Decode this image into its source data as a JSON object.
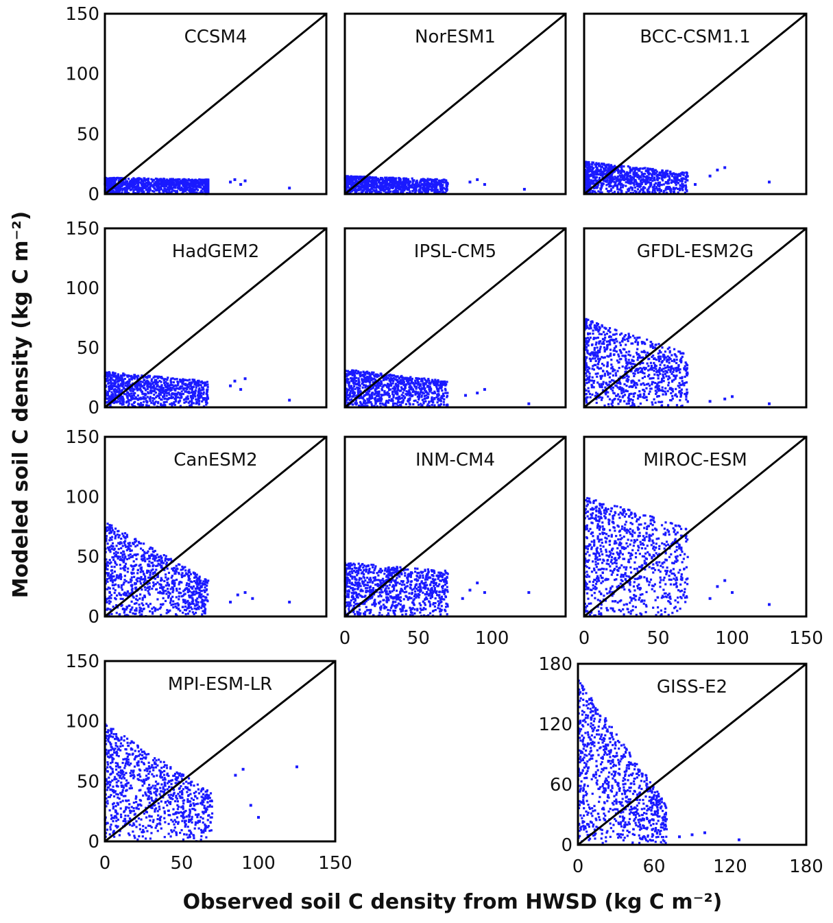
{
  "figure": {
    "ylabel": "Modeled soil  C density  (kg C m⁻²)",
    "xlabel": "Observed soil C density from HWSD (kg C m⁻²)"
  },
  "colors": {
    "points": "#1a1aff",
    "line": "#000000",
    "frame": "#000000"
  },
  "chart_data": [
    {
      "type": "scatter",
      "title": "CCSM4",
      "xlim": [
        0,
        150
      ],
      "ylim": [
        0,
        150
      ],
      "yticks": [
        "0",
        "50",
        "100",
        "150"
      ],
      "xticks": [],
      "reference_line": "1:1",
      "clusters": [
        {
          "x": [
            0,
            70
          ],
          "ymax": [
            14,
            12
          ]
        },
        {
          "x": [
            70,
            68
          ],
          "ymax": [
            12,
            12
          ]
        }
      ],
      "x": [
        85,
        88,
        92,
        95,
        125
      ],
      "y": [
        10,
        12,
        8,
        11,
        5
      ]
    },
    {
      "type": "scatter",
      "title": "NorESM1",
      "xlim": [
        0,
        150
      ],
      "ylim": [
        0,
        150
      ],
      "yticks": [],
      "xticks": [],
      "reference_line": "1:1",
      "clusters": [
        {
          "x": [
            0,
            70
          ],
          "ymax": [
            15,
            12
          ]
        }
      ],
      "x": [
        85,
        90,
        95,
        122
      ],
      "y": [
        10,
        12,
        8,
        4
      ]
    },
    {
      "type": "scatter",
      "title": "BCC-CSM1.1",
      "xlim": [
        0,
        150
      ],
      "ylim": [
        0,
        150
      ],
      "yticks": [],
      "xticks": [],
      "reference_line": "1:1",
      "clusters": [
        {
          "x": [
            0,
            70
          ],
          "ymax": [
            27,
            18
          ]
        }
      ],
      "x": [
        75,
        85,
        90,
        95,
        125
      ],
      "y": [
        8,
        15,
        20,
        22,
        10
      ]
    },
    {
      "type": "scatter",
      "title": "HadGEM2",
      "xlim": [
        0,
        150
      ],
      "ylim": [
        0,
        150
      ],
      "yticks": [
        "0",
        "50",
        "100",
        "150"
      ],
      "xticks": [],
      "reference_line": "1:1",
      "clusters": [
        {
          "x": [
            0,
            70
          ],
          "ymax": [
            30,
            22
          ]
        }
      ],
      "x": [
        85,
        88,
        92,
        95,
        125
      ],
      "y": [
        18,
        22,
        15,
        24,
        6
      ]
    },
    {
      "type": "scatter",
      "title": "IPSL-CM5",
      "xlim": [
        0,
        150
      ],
      "ylim": [
        0,
        150
      ],
      "yticks": [],
      "xticks": [],
      "reference_line": "1:1",
      "clusters": [
        {
          "x": [
            0,
            70
          ],
          "ymax": [
            32,
            22
          ]
        }
      ],
      "x": [
        82,
        90,
        95,
        125
      ],
      "y": [
        10,
        12,
        15,
        3
      ]
    },
    {
      "type": "scatter",
      "title": "GFDL-ESM2G",
      "xlim": [
        0,
        150
      ],
      "ylim": [
        0,
        150
      ],
      "yticks": [],
      "xticks": [],
      "reference_line": "1:1",
      "clusters": [
        {
          "x": [
            0,
            70
          ],
          "ymax": [
            75,
            45
          ]
        }
      ],
      "x": [
        85,
        95,
        100,
        125
      ],
      "y": [
        5,
        7,
        9,
        3
      ]
    },
    {
      "type": "scatter",
      "title": "CanESM2",
      "xlim": [
        0,
        150
      ],
      "ylim": [
        0,
        150
      ],
      "yticks": [
        "0",
        "50",
        "100",
        "150"
      ],
      "xticks": [],
      "reference_line": "1:1",
      "clusters": [
        {
          "x": [
            0,
            70
          ],
          "ymax": [
            80,
            30
          ]
        }
      ],
      "x": [
        85,
        90,
        95,
        100,
        125
      ],
      "y": [
        12,
        18,
        20,
        15,
        12
      ]
    },
    {
      "type": "scatter",
      "title": "INM-CM4",
      "xlim": [
        0,
        150
      ],
      "ylim": [
        0,
        150
      ],
      "yticks": [],
      "xticks": [
        "0",
        "50",
        "100"
      ],
      "reference_line": "1:1",
      "clusters": [
        {
          "x": [
            0,
            70
          ],
          "ymax": [
            45,
            38
          ]
        }
      ],
      "x": [
        80,
        85,
        90,
        95,
        125
      ],
      "y": [
        15,
        22,
        28,
        20,
        20
      ]
    },
    {
      "type": "scatter",
      "title": "MIROC-ESM",
      "xlim": [
        0,
        150
      ],
      "ylim": [
        0,
        150
      ],
      "yticks": [],
      "xticks": [
        "0",
        "50",
        "100",
        "150"
      ],
      "reference_line": "1:1",
      "clusters": [
        {
          "x": [
            0,
            70
          ],
          "ymax": [
            100,
            75
          ]
        }
      ],
      "x": [
        85,
        90,
        95,
        100,
        125
      ],
      "y": [
        15,
        25,
        30,
        20,
        10
      ]
    },
    {
      "type": "scatter",
      "title": "MPI-ESM-LR",
      "xlim": [
        0,
        150
      ],
      "ylim": [
        0,
        150
      ],
      "yticks": [
        "0",
        "50",
        "100",
        "150"
      ],
      "xticks": [
        "0",
        "50",
        "100",
        "150"
      ],
      "reference_line": "1:1",
      "clusters": [
        {
          "x": [
            0,
            70
          ],
          "ymax": [
            98,
            40
          ]
        }
      ],
      "x": [
        85,
        90,
        95,
        100,
        125
      ],
      "y": [
        55,
        60,
        30,
        20,
        62
      ]
    },
    {
      "type": "scatter",
      "title": "GISS-E2",
      "xlim": [
        0,
        180
      ],
      "ylim": [
        0,
        180
      ],
      "yticks": [
        "0",
        "60",
        "120",
        "180"
      ],
      "xticks": [
        "0",
        "60",
        "120",
        "180"
      ],
      "reference_line": "1:1",
      "clusters": [
        {
          "x": [
            0,
            70
          ],
          "ymax": [
            165,
            40
          ]
        }
      ],
      "x": [
        80,
        90,
        100,
        127
      ],
      "y": [
        8,
        10,
        12,
        5
      ]
    }
  ]
}
